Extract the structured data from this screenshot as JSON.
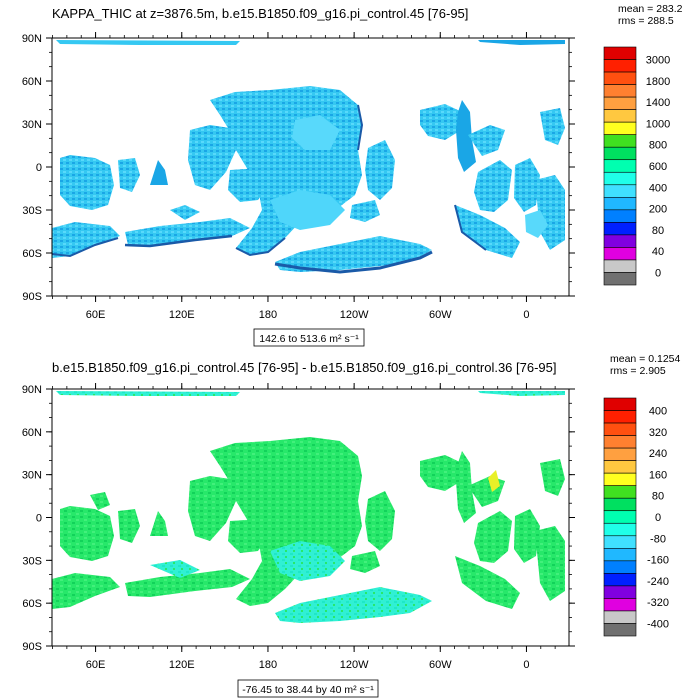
{
  "chart_data": [
    {
      "type": "heatmap",
      "title": "KAPPA_THIC at z=3876.5m, b.e15.B1850.f09_g16.pi_control.45 [76-95]",
      "stats": {
        "mean": "mean = 283.2",
        "rms": "rms = 288.5"
      },
      "x_ticks": [
        "60E",
        "120E",
        "180",
        "120W",
        "60W",
        "0"
      ],
      "y_ticks": [
        "90N",
        "60N",
        "30N",
        "0",
        "30S",
        "60S",
        "90S"
      ],
      "range_text": "142.6 to 513.6 m² s⁻¹",
      "colorbar_labels": [
        "3000",
        "1800",
        "1400",
        "1000",
        "800",
        "600",
        "400",
        "200",
        "80",
        "40",
        "0"
      ],
      "colors": [
        "#e00000",
        "#ff2000",
        "#ff5010",
        "#ff8030",
        "#ffa040",
        "#ffc840",
        "#ffff20",
        "#40e020",
        "#00e060",
        "#00ffb0",
        "#20ffe8",
        "#40e0ff",
        "#20b8ff",
        "#0080ff",
        "#0020ff",
        "#8000e0",
        "#e000e0",
        "#c8c8c8",
        "#707070"
      ],
      "dominant_levels": [
        "200-400",
        "400-600"
      ]
    },
    {
      "type": "heatmap",
      "title": "b.e15.B1850.f09_g16.pi_control.45 [76-95] - b.e15.B1850.f09_g16.pi_control.36 [76-95]",
      "stats": {
        "mean": "mean = 0.1254",
        "rms": "rms = 2.905"
      },
      "x_ticks": [
        "60E",
        "120E",
        "180",
        "120W",
        "60W",
        "0"
      ],
      "y_ticks": [
        "90N",
        "60N",
        "30N",
        "0",
        "30S",
        "60S",
        "90S"
      ],
      "range_text": "-76.45 to 38.44 by 40 m² s⁻¹",
      "colorbar_labels": [
        "400",
        "320",
        "240",
        "160",
        "80",
        "0",
        "-80",
        "-160",
        "-240",
        "-320",
        "-400"
      ],
      "colors": [
        "#e00000",
        "#ff2000",
        "#ff5010",
        "#ff8030",
        "#ffa040",
        "#ffc840",
        "#ffff20",
        "#40e020",
        "#00e060",
        "#00ffb0",
        "#20ffe8",
        "#40e0ff",
        "#20b8ff",
        "#0080ff",
        "#0020ff",
        "#8000e0",
        "#e000e0",
        "#c8c8c8",
        "#707070"
      ],
      "dominant_levels": [
        "0 to 40",
        "-40 to 0"
      ]
    }
  ]
}
